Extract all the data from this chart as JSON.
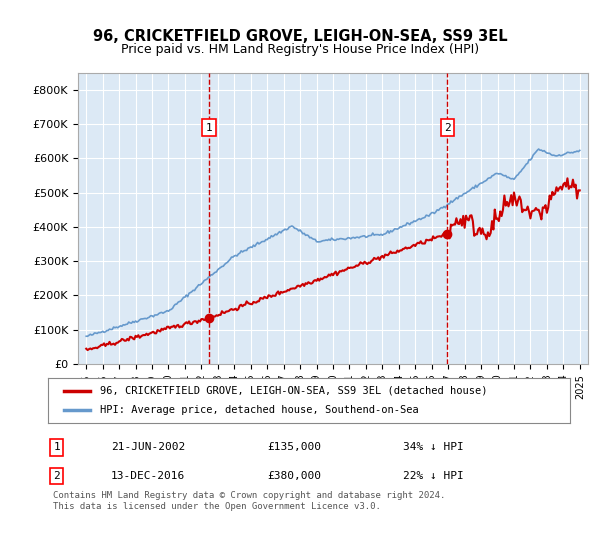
{
  "title": "96, CRICKETFIELD GROVE, LEIGH-ON-SEA, SS9 3EL",
  "subtitle": "Price paid vs. HM Land Registry's House Price Index (HPI)",
  "bg_color": "#dce9f5",
  "plot_bg_color": "#dce9f5",
  "red_label": "96, CRICKETFIELD GROVE, LEIGH-ON-SEA, SS9 3EL (detached house)",
  "blue_label": "HPI: Average price, detached house, Southend-on-Sea",
  "annotation1_label": "1",
  "annotation1_date": "21-JUN-2002",
  "annotation1_price": "£135,000",
  "annotation1_hpi": "34% ↓ HPI",
  "annotation2_label": "2",
  "annotation2_date": "13-DEC-2016",
  "annotation2_price": "£380,000",
  "annotation2_hpi": "22% ↓ HPI",
  "footer": "Contains HM Land Registry data © Crown copyright and database right 2024.\nThis data is licensed under the Open Government Licence v3.0.",
  "ylim": [
    0,
    850000
  ],
  "yticks": [
    0,
    100000,
    200000,
    300000,
    400000,
    500000,
    600000,
    700000,
    800000
  ],
  "ytick_labels": [
    "£0",
    "£100K",
    "£200K",
    "£300K",
    "£400K",
    "£500K",
    "£600K",
    "£700K",
    "£800K"
  ],
  "xtick_years": [
    1995,
    1996,
    1997,
    1998,
    1999,
    2000,
    2001,
    2002,
    2003,
    2004,
    2005,
    2006,
    2007,
    2008,
    2009,
    2010,
    2011,
    2012,
    2013,
    2014,
    2015,
    2016,
    2017,
    2018,
    2019,
    2020,
    2021,
    2022,
    2023,
    2024,
    2025
  ],
  "vline1_x": 2002.47,
  "vline2_x": 2016.95,
  "marker1_x": 2002.47,
  "marker1_y": 135000,
  "marker2_x": 2016.95,
  "marker2_y": 380000,
  "red_color": "#cc0000",
  "blue_color": "#6699cc",
  "vline_color": "#cc0000",
  "marker_color": "#cc0000"
}
